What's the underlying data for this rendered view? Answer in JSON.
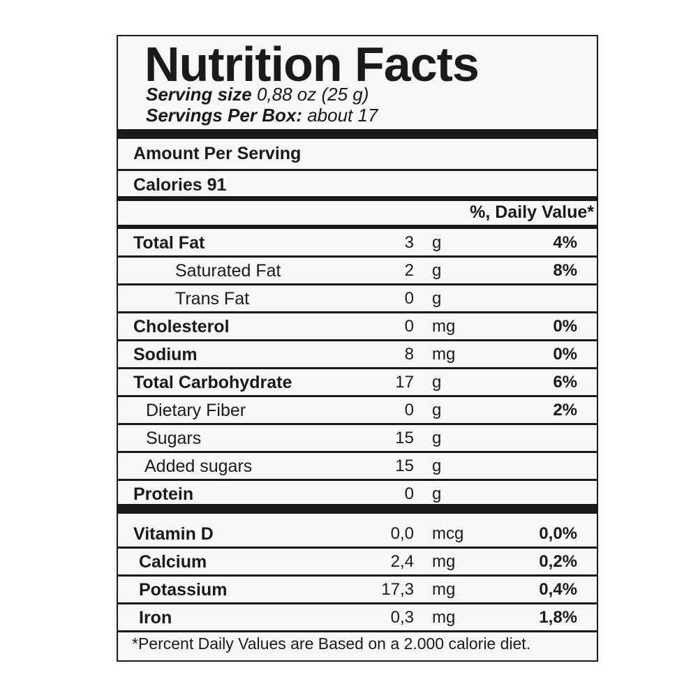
{
  "label": {
    "title": "Nutrition Facts",
    "serving_size_key": "Serving size",
    "serving_size_value": "0,88 oz (25 g)",
    "servings_per_box_key": "Servings Per Box:",
    "servings_per_box_value": "about 17",
    "amount_per_serving": "Amount Per Serving",
    "calories": "Calories 91",
    "daily_value_header": "%, Daily Value*",
    "nutrients": [
      {
        "name": "Total Fat",
        "amount": "3",
        "unit": "g",
        "dv": "4%"
      },
      {
        "name": "Saturated Fat",
        "amount": "2",
        "unit": "g",
        "dv": "8%"
      },
      {
        "name": "Trans Fat",
        "amount": "0",
        "unit": "g",
        "dv": ""
      },
      {
        "name": "Cholesterol",
        "amount": "0",
        "unit": "mg",
        "dv": "0%"
      },
      {
        "name": "Sodium",
        "amount": "8",
        "unit": "mg",
        "dv": "0%"
      },
      {
        "name": "Total Carbohydrate",
        "amount": "17",
        "unit": "g",
        "dv": "6%"
      },
      {
        "name": "Dietary Fiber",
        "amount": "0",
        "unit": "g",
        "dv": "2%"
      },
      {
        "name": "Sugars",
        "amount": "15",
        "unit": "g",
        "dv": ""
      },
      {
        "name": "Added sugars",
        "amount": "15",
        "unit": "g",
        "dv": ""
      },
      {
        "name": "Protein",
        "amount": "0",
        "unit": "g",
        "dv": ""
      }
    ],
    "vitamins": [
      {
        "name": "Vitamin D",
        "amount": "0,0",
        "unit": "mcg",
        "dv": "0,0%"
      },
      {
        "name": "Calcium",
        "amount": "2,4",
        "unit": "mg",
        "dv": "0,2%"
      },
      {
        "name": "Potassium",
        "amount": "17,3",
        "unit": "mg",
        "dv": "0,4%"
      },
      {
        "name": "Iron",
        "amount": "0,3",
        "unit": "mg",
        "dv": "1,8%"
      }
    ],
    "footnote": "*Percent Daily Values are Based on a 2.000 calorie diet."
  }
}
